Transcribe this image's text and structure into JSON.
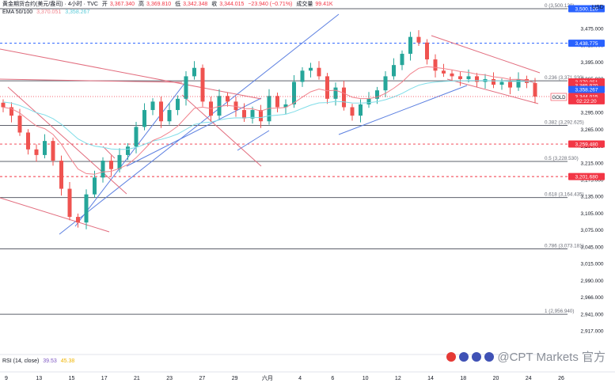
{
  "header": {
    "symbol": "黄金期货合约(美元/盎司) · 4小时 · TVC",
    "open_label": "开",
    "open": "3,367.340",
    "high_label": "高",
    "high": "3,369.810",
    "low_label": "低",
    "low": "3,342.348",
    "close_label": "收",
    "close": "3,344.015",
    "change": "−23.940 (−0.71%)",
    "volume_label": "成交量",
    "volume": "99.41K",
    "ema_label": "EMA 50/100",
    "ema50": "3,370.051",
    "ema100": "3,358.267",
    "currency": "USD"
  },
  "rsi": {
    "label": "RSI (14, close)",
    "v1": "39.53",
    "v2": "45.38"
  },
  "watermark": "@CPT Markets 官方",
  "colors": {
    "up": "#26a69a",
    "down": "#ef5350",
    "blue": "#5b7fe0",
    "pink": "#e26d7e",
    "ema50": "#f1848e",
    "ema100": "#7fdde8",
    "price_badge": "#f23645",
    "blue_badge": "#2962ff"
  },
  "chart_data": {
    "type": "candlestick",
    "ylim": [
      2905,
      3510
    ],
    "x_ticks": [
      "9",
      "13",
      "15",
      "17",
      "21",
      "23",
      "27",
      "29",
      "六月",
      "4",
      "6",
      "10",
      "12",
      "14",
      "18",
      "20",
      "24",
      "26"
    ],
    "y_ticks": [
      "3,475.000",
      "3,425.000",
      "3,395.000",
      "3,365.000",
      "3,325.000",
      "3,295.000",
      "3,265.000",
      "3,235.000",
      "3,215.000",
      "3,175.000",
      "3,135.000",
      "3,105.000",
      "3,075.000",
      "3,045.000",
      "3,015.000",
      "2,990.000",
      "2,966.000",
      "2,941.000",
      "2,917.000"
    ],
    "fib_levels": [
      {
        "label": "0 (3,500.120)",
        "value": 3500.12
      },
      {
        "label": "0.236 (3,371.930)",
        "value": 3371.93
      },
      {
        "label": "0.382 (3,292.625)",
        "value": 3292.625
      },
      {
        "label": "0.5 (3,228.530)",
        "value": 3228.53
      },
      {
        "label": "0.618 (3,164.435)",
        "value": 3164.435
      },
      {
        "label": "0.786 (3,073.181)",
        "value": 3073.181
      },
      {
        "label": "1 (2,956.940)",
        "value": 2956.94
      }
    ],
    "dashed_levels": [
      {
        "label": "3,438.775",
        "value": 3438.775,
        "color": "#2962ff"
      },
      {
        "label": "3,259.480",
        "value": 3259.48,
        "color": "#f23645"
      },
      {
        "label": "3,201.680",
        "value": 3201.68,
        "color": "#f23645"
      }
    ],
    "price_badges": [
      {
        "label": "3,500.120",
        "value": 3500.12,
        "color": "#2962ff"
      },
      {
        "label": "3,438.775",
        "value": 3438.775,
        "color": "#2962ff"
      },
      {
        "label": "3,370.051",
        "value": 3370.051,
        "color": "#f23645"
      },
      {
        "label": "3,365.970",
        "value": 3363.5,
        "color": "#f23645"
      },
      {
        "label": "3,358.267",
        "value": 3356.5,
        "color": "#2962ff"
      },
      {
        "label": "3,344.015",
        "value": 3344.015,
        "color": "#f23645"
      },
      {
        "label": "02:22:20",
        "value": 3336.5,
        "color": "#f23645"
      },
      {
        "label": "3,259.480",
        "value": 3259.48,
        "color": "#f23645"
      },
      {
        "label": "3,201.680",
        "value": 3201.68,
        "color": "#f23645"
      }
    ],
    "gold_tag": "GOLD",
    "close_path": [
      3325,
      3310,
      3280,
      3250,
      3240,
      3265,
      3230,
      3180,
      3130,
      3120,
      3170,
      3200,
      3230,
      3215,
      3240,
      3255,
      3290,
      3320,
      3335,
      3300,
      3320,
      3340,
      3380,
      3395,
      3335,
      3310,
      3345,
      3335,
      3320,
      3305,
      3320,
      3300,
      3345,
      3325,
      3330,
      3370,
      3390,
      3395,
      3380,
      3340,
      3360,
      3325,
      3310,
      3330,
      3340,
      3355,
      3380,
      3400,
      3420,
      3450,
      3440,
      3410,
      3390,
      3385,
      3380,
      3375,
      3380,
      3370,
      3375,
      3365,
      3370,
      3360,
      3375,
      3368,
      3344
    ]
  }
}
